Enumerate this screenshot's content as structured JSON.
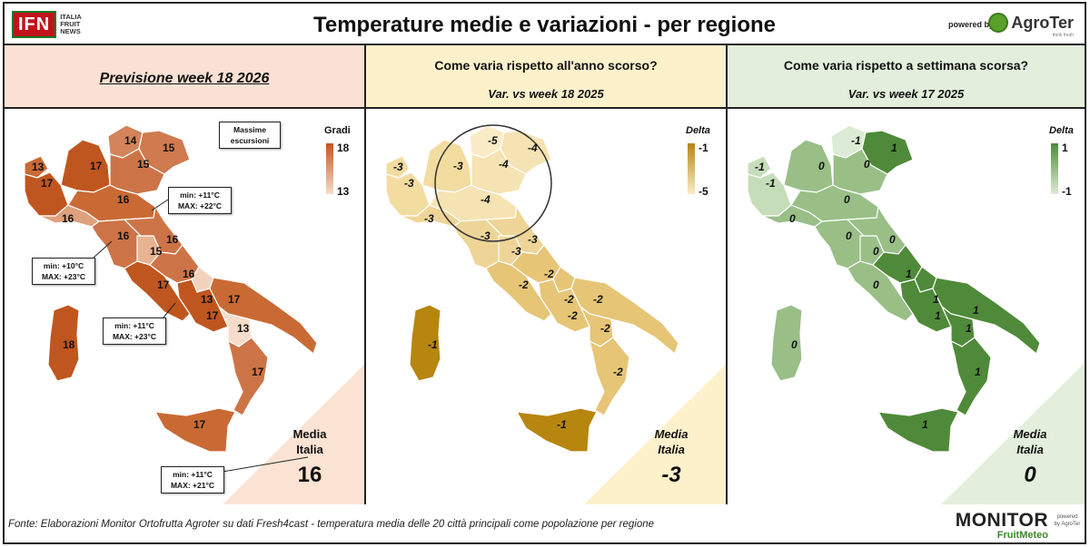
{
  "header": {
    "title": "Temperature medie e variazioni - per regione",
    "ifn_logo": "IFN",
    "ifn_sub": [
      "ITALIA",
      "FRUIT",
      "NEWS"
    ],
    "powered_by": "powered by",
    "agroter": "AgroTer",
    "agroter_tag": "think fresh"
  },
  "panel_forecast": {
    "heading": "Previsione week 18 2026",
    "legend_title": "Gradi",
    "legend_max": "18",
    "legend_min": "13",
    "legend_colors": [
      "#c0561f",
      "#f7ddc9"
    ],
    "box_label": "Massime\nescursioni",
    "callouts": [
      {
        "min": "min: +11°C",
        "max": "MAX: +22°C"
      },
      {
        "min": "min: +10°C",
        "max": "MAX: +23°C"
      },
      {
        "min": "min: +11°C",
        "max": "MAX: +23°C"
      },
      {
        "min": "min: +11°C",
        "max": "MAX: +21°C"
      }
    ],
    "regions": [
      "13",
      "17",
      "14",
      "15",
      "15",
      "17",
      "16",
      "16",
      "16",
      "15",
      "16",
      "16",
      "17",
      "13",
      "17",
      "17",
      "13",
      "17",
      "18",
      "17"
    ],
    "media_label": "Media\nItalia",
    "media_value": "16"
  },
  "panel_year": {
    "heading_line1": "Come varia rispetto all'anno scorso?",
    "heading_line2": "Var. vs week 18 2025",
    "legend_title": "Delta",
    "legend_max": "-1",
    "legend_min": "-5",
    "legend_colors": [
      "#b7860f",
      "#fbecc8"
    ],
    "regions": [
      "-3",
      "-3",
      "-5",
      "-4",
      "-4",
      "-3",
      "-4",
      "-3",
      "-3",
      "-3",
      "-3",
      "-2",
      "-2",
      "-2",
      "-2",
      "-2",
      "-2",
      "-2",
      "-1",
      "-1"
    ],
    "media_label": "Media\nItalia",
    "media_value": "-3"
  },
  "panel_week": {
    "heading_line1": "Come varia rispetto a settimana scorsa?",
    "heading_line2": "Var. vs week 17 2025",
    "legend_title": "Delta",
    "legend_max": "1",
    "legend_min": "-1",
    "legend_colors": [
      "#4f8a3a",
      "#dcebd5"
    ],
    "regions": [
      "-1",
      "-1",
      "-1",
      "1",
      "0",
      "0",
      "0",
      "0",
      "0",
      "0",
      "0",
      "0",
      "1",
      "1",
      "1",
      "1",
      "1",
      "1",
      "0",
      "1"
    ],
    "media_label": "Media\nItalia",
    "media_value": "0"
  },
  "footer": {
    "source": "Fonte: Elaborazioni Monitor Ortofrutta Agroter su dati Fresh4cast - temperatura media delle 20 città principali come popolazione per regione",
    "monitor": "MONITOR",
    "fruitmeteo": "FruitMeteo",
    "powered_by": "powered by AgroTer"
  }
}
